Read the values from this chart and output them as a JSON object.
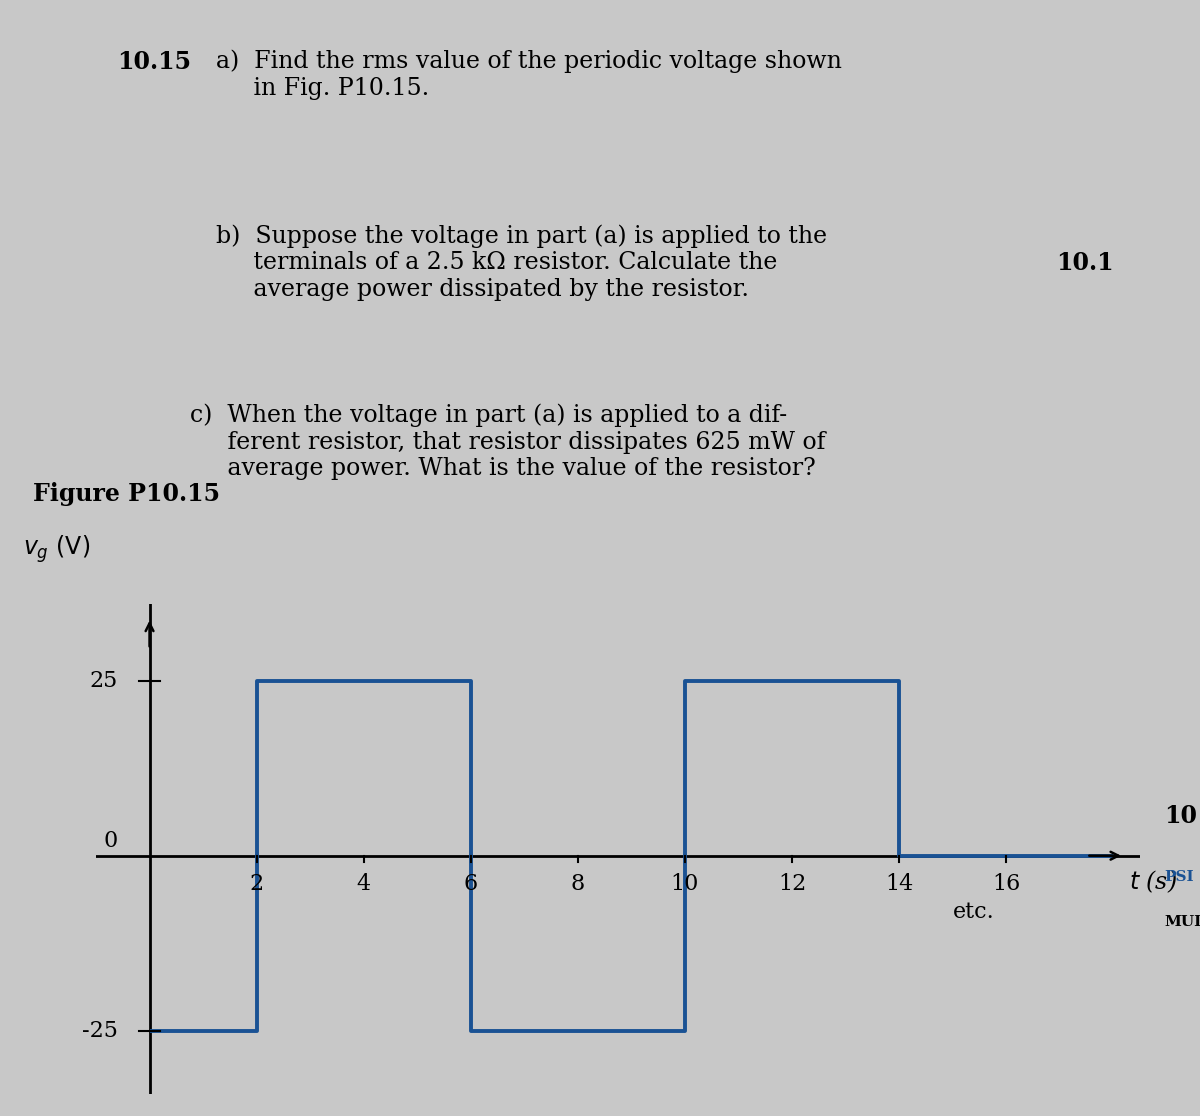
{
  "background_color": "#c8c8c8",
  "waveform_color": "#1a5294",
  "waveform_lw": 2.8,
  "ylabel": "$v_g$ (V)",
  "xlabel": "$t$ (s)",
  "ylim": [
    -34,
    36
  ],
  "xlim": [
    -1.0,
    18.5
  ],
  "axis_label_fontsize": 17,
  "tick_fontsize": 16,
  "text_fontsize": 17,
  "fig_label": "Figure P10.15",
  "side_note": "10.1",
  "etc_text": "etc.",
  "waveform_t": [
    0,
    2,
    2,
    4,
    4,
    6,
    6,
    8,
    8,
    10,
    10,
    12,
    12,
    14,
    14,
    16,
    16,
    18
  ],
  "waveform_v": [
    -25,
    -25,
    25,
    25,
    25,
    25,
    -25,
    -25,
    -25,
    -25,
    25,
    25,
    25,
    25,
    0,
    0,
    0,
    0
  ],
  "xtick_vals": [
    2,
    4,
    6,
    8,
    10,
    12,
    14,
    16
  ],
  "ytick_vals": [
    25,
    -25
  ],
  "text_a": "a)  Find the rms value of the periodic voltage shown\n     in Fig. P10.15.",
  "text_b": "b)  Suppose the voltage in part (a) is applied to the\n     terminals of a 2.5 kΩ resistor. Calculate the\n     average power dissipated by the resistor.",
  "text_c": "c)  When the voltage in part (a) is applied to a dif-\n     ferent resistor, that resistor dissipates 625 mW of\n     average power. What is the value of the resistor?"
}
